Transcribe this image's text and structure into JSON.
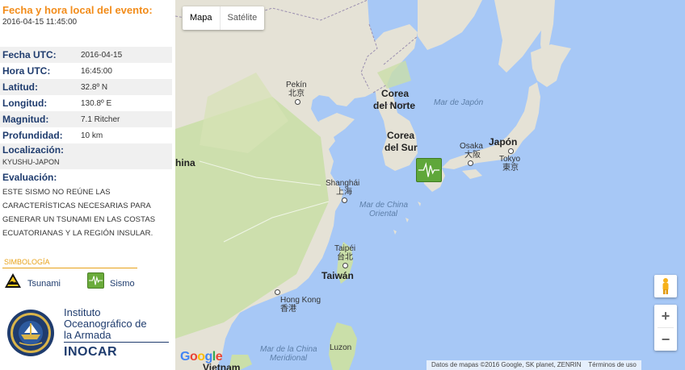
{
  "event": {
    "title": "Fecha y hora local del evento:",
    "local_datetime": "2016-04-15 11:45:00"
  },
  "info": {
    "fecha_utc": {
      "label": "Fecha UTC:",
      "value": "2016-04-15"
    },
    "hora_utc": {
      "label": "Hora UTC:",
      "value": "16:45:00"
    },
    "latitud": {
      "label": "Latitud:",
      "value": "32.8º N"
    },
    "longitud": {
      "label": "Longitud:",
      "value": "130.8º E"
    },
    "magnitud": {
      "label": "Magnitud:",
      "value": "7.1 Ritcher"
    },
    "profundidad": {
      "label": "Profundidad:",
      "value": "10 km"
    },
    "localizacion": {
      "label": "Localización:",
      "value": "KYUSHU-JAPON"
    },
    "evaluacion": {
      "label": "Evaluación:",
      "text": "ESTE SISMO NO REÚNE LAS CARACTERÍSTICAS NECESARIAS PARA GENERAR UN TSUNAMI EN LAS COSTAS ECUATORIANAS Y LA REGIÓN INSULAR."
    }
  },
  "symbology": {
    "title": "SIMBOLOGÍA",
    "tsunami_label": "Tsunami",
    "sismo_label": "Sismo",
    "tsunami_icon": "tsunami-warning-icon",
    "sismo_icon": "seismograph-icon"
  },
  "logo": {
    "line1": "Instituto",
    "line2": "Oceanográfico de",
    "line3": "la Armada",
    "abbr": "INOCAR",
    "seal_text": "ARMADA DEL ECUADOR · INSTITUTO OCEANOGRÁFICO"
  },
  "map": {
    "type_buttons": {
      "map": "Mapa",
      "satellite": "Satélite"
    },
    "labels": {
      "pekin": "Pekín",
      "pekin_cn": "北京",
      "corea_norte_1": "Corea",
      "corea_norte_2": "del Norte",
      "corea_sur_1": "Corea",
      "corea_sur_2": "del Sur",
      "mar_japon": "Mar de Japón",
      "japon": "Japón",
      "japon_tokyo": "Tokyo",
      "japon_tokyo_cn": "東京",
      "osaka": "Osaka",
      "osaka_cn": "大阪",
      "china": "hina",
      "shanghai": "Shanghái",
      "shanghai_cn": "上海",
      "mar_china_oriental_1": "Mar de China",
      "mar_china_oriental_2": "Oriental",
      "taipei": "Taipéi",
      "taipei_cn": "台北",
      "taiwan": "Taiwán",
      "hong_kong": "Hong Kong",
      "hong_kong_cn": "香港",
      "mar_china_meridional_1": "Mar de la China",
      "mar_china_meridional_2": "Meridional",
      "luzon": "Luzon",
      "vietnam": "Vietnam"
    },
    "zoom_in": "+",
    "zoom_out": "−",
    "google": "Google",
    "attribution": "Datos de mapas ©2016 Google, SK planet, ZENRIN",
    "terms": "Términos de uso",
    "colors": {
      "water": "#a7c8f6",
      "land": "#e5e2d6",
      "vegetation": "#cadfa9",
      "border": "#9b8fb0",
      "quake": "#5fa73a",
      "accent": "#f28c1a",
      "navy": "#1f3c6e"
    }
  }
}
